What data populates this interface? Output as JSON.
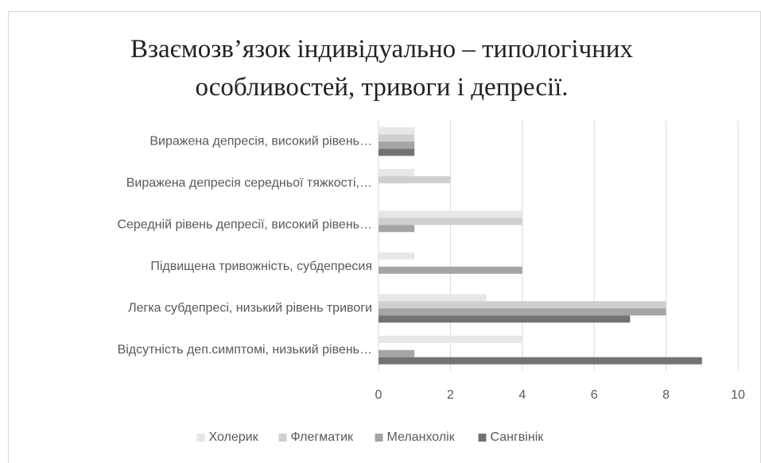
{
  "chart_data": {
    "type": "hbar",
    "title": "Взаємозв’язок індивідуально – типологічних особливостей, тривоги і депресії.",
    "categories": [
      "Виражена депресія, високий рівень…",
      "Виражена депресія середньої тяжкості,…",
      "Середній рівень депресії, високий рівень…",
      "Підвищена тривожність, субдепресия",
      "Легка субдепресі, низький рівень тривоги",
      "Відсутність деп.симптомі, низький рівень…"
    ],
    "series": [
      {
        "name": "Холерик",
        "color": "#e7e7e7",
        "values": [
          1,
          1,
          4,
          1,
          3,
          4
        ]
      },
      {
        "name": "Флегматик",
        "color": "#cfcfcf",
        "values": [
          1,
          2,
          4,
          0,
          8,
          0
        ]
      },
      {
        "name": "Меланхолік",
        "color": "#a5a5a5",
        "values": [
          1,
          0,
          1,
          4,
          8,
          1
        ]
      },
      {
        "name": "Сангвінік",
        "color": "#737373",
        "values": [
          1,
          0,
          0,
          0,
          7,
          9
        ]
      }
    ],
    "xlim": [
      0,
      10
    ],
    "xticks": [
      0,
      2,
      4,
      6,
      8,
      10
    ],
    "grid": true,
    "legend": "bottom"
  }
}
